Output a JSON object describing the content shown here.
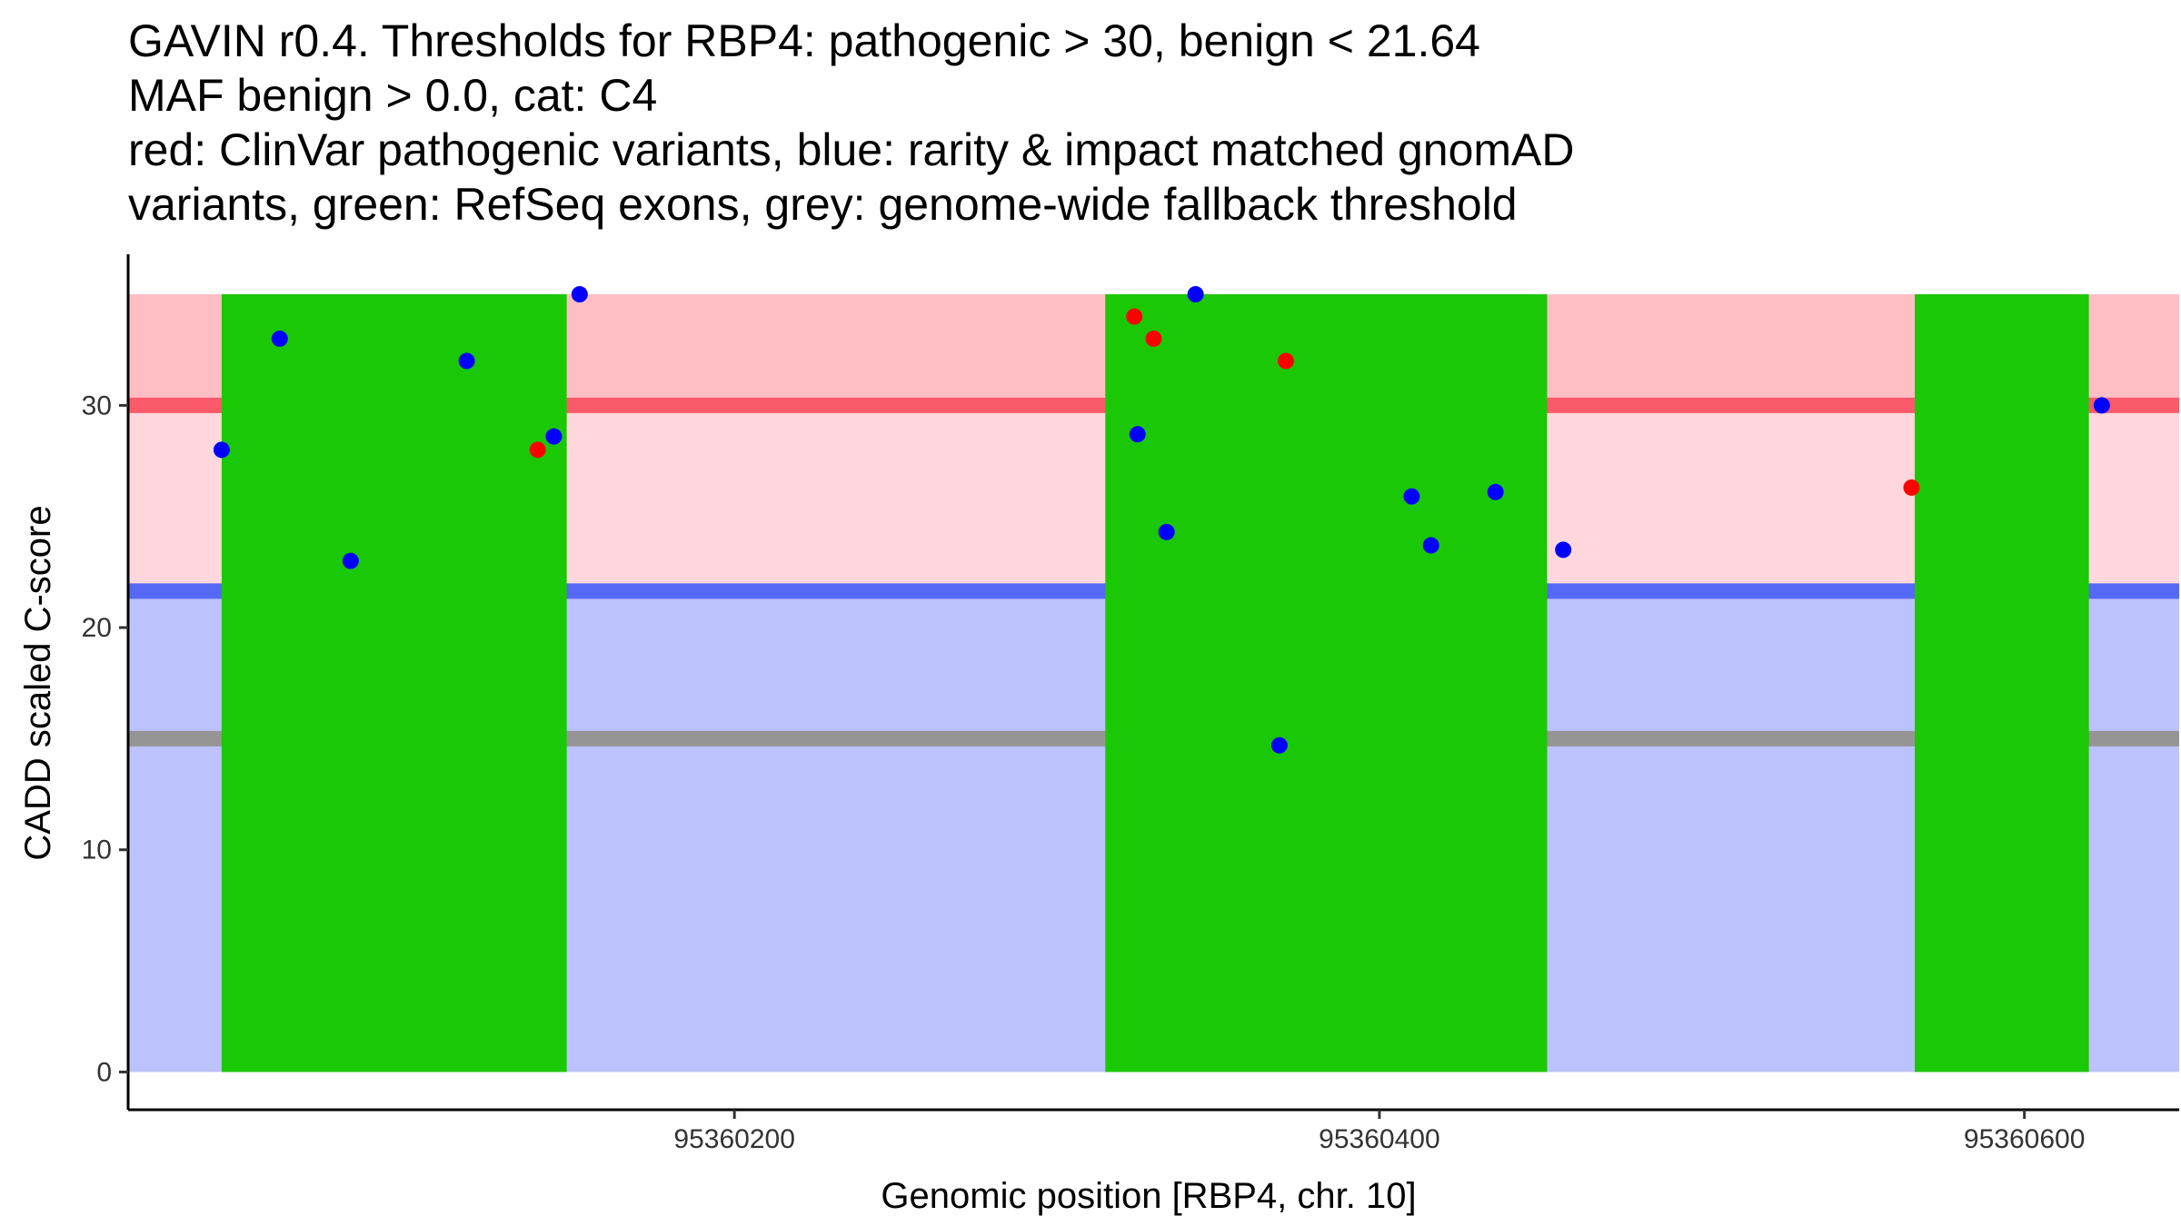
{
  "chart_data": {
    "type": "scatter",
    "title_lines": [
      "GAVIN r0.4. Thresholds for RBP4: pathogenic > 30, benign < 21.64",
      "MAF benign > 0.0, cat: C4",
      "red: ClinVar pathogenic variants, blue: rarity & impact matched gnomAD",
      "variants, green: RefSeq exons, grey: genome-wide fallback threshold"
    ],
    "xlabel": "Genomic position [RBP4, chr. 10]",
    "ylabel": "CADD scaled C-score",
    "xlim": [
      95360012,
      95360648
    ],
    "ylim": [
      -1.7,
      36.8
    ],
    "x_ticks": [
      95360200,
      95360400,
      95360600
    ],
    "y_ticks": [
      0,
      10,
      20,
      30
    ],
    "regions": {
      "benign": {
        "y0": 0,
        "y1": 21.64,
        "color": "#BCC2FC"
      },
      "pathogenic_lower": {
        "y0": 21.64,
        "y1": 30,
        "color": "#FFD7DC"
      },
      "pathogenic_upper": {
        "y0": 30,
        "y1": 35,
        "color": "#FFBEC4"
      }
    },
    "threshold_lines": [
      {
        "name": "pathogenic",
        "y": 30,
        "color": "#FA5A6A"
      },
      {
        "name": "benign",
        "y": 21.64,
        "color": "#5669F4"
      },
      {
        "name": "genome-wide fallback",
        "y": 15,
        "color": "#959595"
      }
    ],
    "exons": [
      {
        "x0": 95360041,
        "x1": 95360148
      },
      {
        "x0": 95360315,
        "x1": 95360452
      },
      {
        "x0": 95360566,
        "x1": 95360620
      }
    ],
    "exon_color": "#1BC805",
    "exon_y": [
      0,
      35
    ],
    "series": [
      {
        "name": "ClinVar pathogenic variants",
        "color": "#FF0000",
        "points": [
          {
            "x": 95360139,
            "y": 28
          },
          {
            "x": 95360324,
            "y": 34
          },
          {
            "x": 95360330,
            "y": 33
          },
          {
            "x": 95360371,
            "y": 32
          },
          {
            "x": 95360565,
            "y": 26.3
          }
        ]
      },
      {
        "name": "rarity & impact matched gnomAD variants",
        "color": "#0000FF",
        "points": [
          {
            "x": 95360041,
            "y": 28
          },
          {
            "x": 95360059,
            "y": 33
          },
          {
            "x": 95360081,
            "y": 23
          },
          {
            "x": 95360117,
            "y": 32
          },
          {
            "x": 95360144,
            "y": 28.6
          },
          {
            "x": 95360152,
            "y": 35
          },
          {
            "x": 95360325,
            "y": 28.7
          },
          {
            "x": 95360334,
            "y": 24.3
          },
          {
            "x": 95360343,
            "y": 35
          },
          {
            "x": 95360369,
            "y": 14.7
          },
          {
            "x": 95360410,
            "y": 25.9
          },
          {
            "x": 95360416,
            "y": 23.7
          },
          {
            "x": 95360436,
            "y": 26.1
          },
          {
            "x": 95360457,
            "y": 23.5
          },
          {
            "x": 95360624,
            "y": 30
          }
        ]
      }
    ]
  }
}
